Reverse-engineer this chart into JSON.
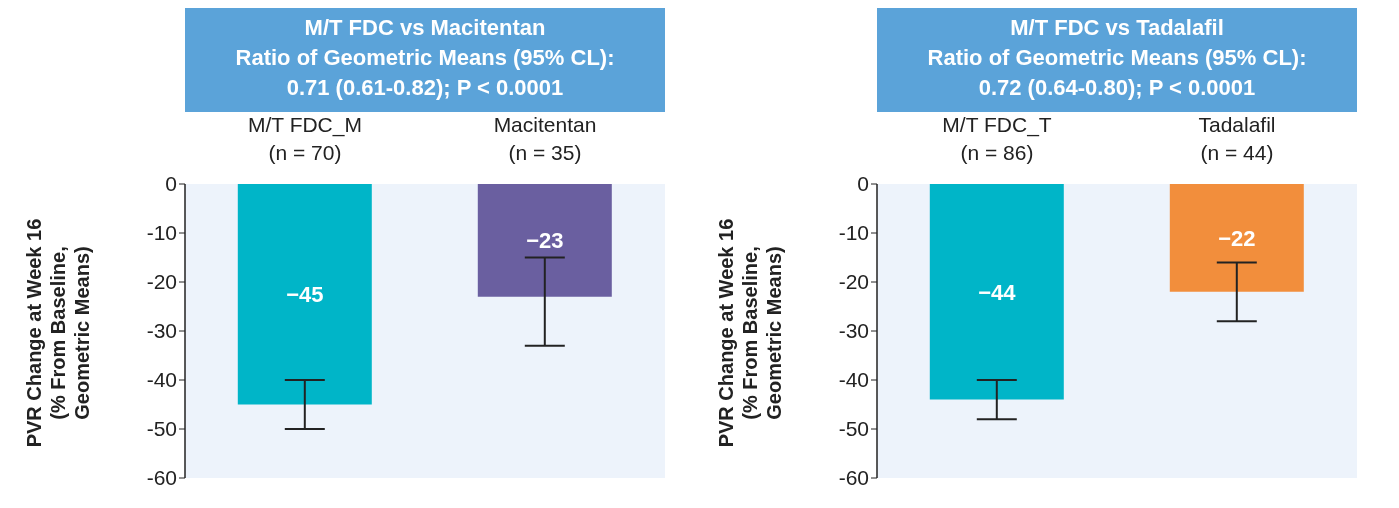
{
  "chart_data": [
    {
      "type": "bar",
      "title": "M/T FDC vs Macitentan",
      "subtitle": "Ratio of Geometric Means (95% CL):\n0.71 (0.61-0.82); P < 0.0001",
      "categories": [
        "M/T FDC_M\n(n = 70)",
        "Macitentan\n(n = 35)"
      ],
      "values": [
        -45,
        -23
      ],
      "colors": [
        "#00b5c8",
        "#6a5fa0"
      ],
      "errors": [
        [
          -50,
          -40
        ],
        [
          -33,
          -15
        ]
      ],
      "ylabel": "PVR Change at Week 16\n(% From Baseline,\nGeometric Means)",
      "ylim": [
        -60,
        0
      ],
      "yticks": [
        -60,
        -50,
        -40,
        -30,
        -20,
        -10,
        0
      ],
      "data_labels": true
    },
    {
      "type": "bar",
      "title": "M/T FDC vs Tadalafil",
      "subtitle": "Ratio of Geometric Means (95% CL):\n0.72 (0.64-0.80); P < 0.0001",
      "categories": [
        "M/T FDC_T\n(n = 86)",
        "Tadalafil\n(n = 44)"
      ],
      "values": [
        -44,
        -22
      ],
      "colors": [
        "#00b5c8",
        "#f28e3c"
      ],
      "errors": [
        [
          -48,
          -40
        ],
        [
          -28,
          -16
        ]
      ],
      "ylabel": "PVR Change at Week 16\n(% From Baseline,\nGeometric Means)",
      "ylim": [
        -60,
        0
      ],
      "yticks": [
        -60,
        -50,
        -40,
        -30,
        -20,
        -10,
        0
      ],
      "data_labels": true
    }
  ]
}
